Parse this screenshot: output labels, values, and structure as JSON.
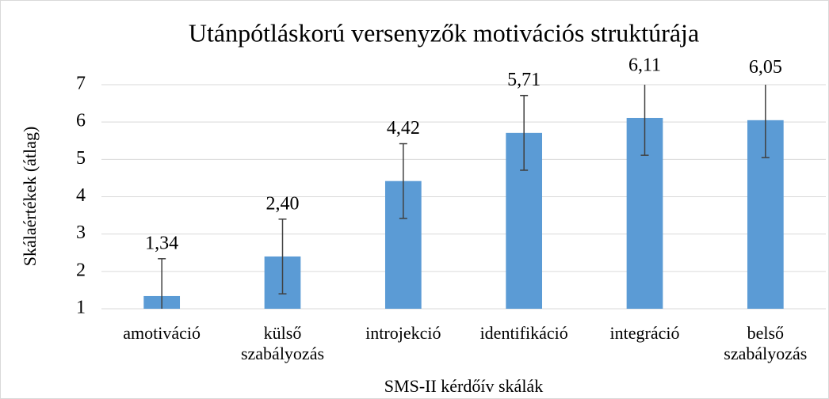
{
  "chart_data": {
    "type": "bar",
    "title": "Utánpótláskorú versenyzők motivációs struktúrája",
    "x_label": "SMS-II kérdőív skálák",
    "y_label": "Skálaértékek (átlag)",
    "categories": [
      "amotiváció",
      "külső szabályozás",
      "introjekció",
      "identifikáció",
      "integráció",
      "belső szabályozás"
    ],
    "values": [
      1.34,
      2.4,
      4.42,
      5.71,
      6.11,
      6.05
    ],
    "value_labels": [
      "1,34",
      "2,40",
      "4,42",
      "5,71",
      "6,11",
      "6,05"
    ],
    "errors": [
      1,
      1,
      1,
      1,
      1,
      1
    ],
    "color": "#5b9bd5",
    "ylim": [
      1,
      7
    ],
    "yticks": [
      1,
      2,
      3,
      4,
      5,
      6,
      7
    ],
    "grid": true
  }
}
